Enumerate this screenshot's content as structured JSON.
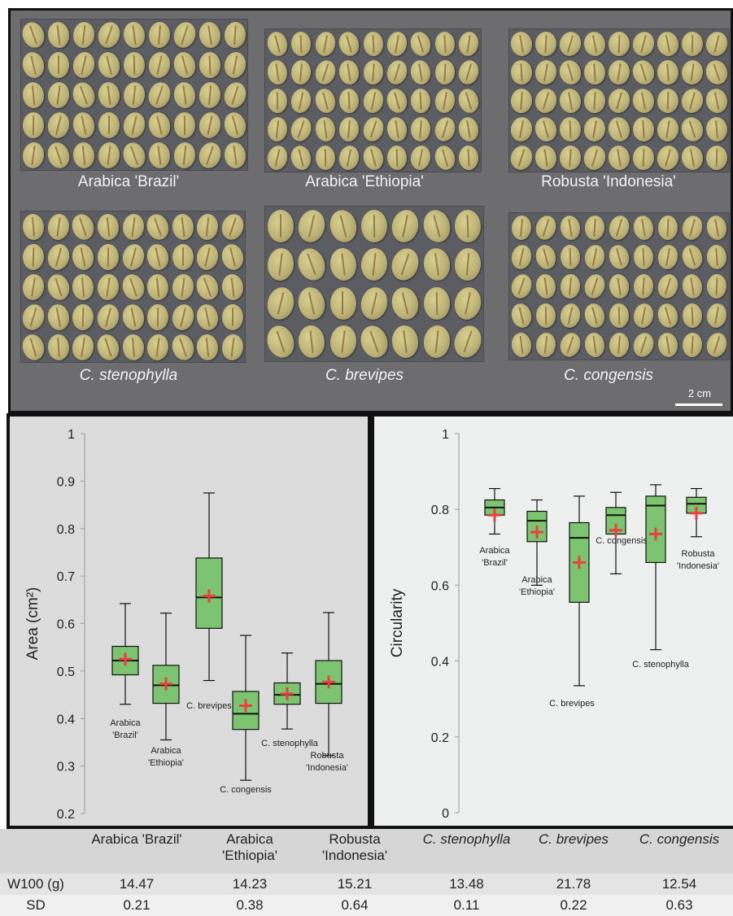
{
  "photos": {
    "labels": [
      "Arabica 'Brazil'",
      "Arabica 'Ethiopia'",
      "Robusta 'Indonesia'",
      "C. stenophylla",
      "C. brevipes",
      "C. congensis"
    ],
    "scale_label": "2 cm"
  },
  "colors": {
    "box_fill": "#7cc46f",
    "mean_marker": "#e84040",
    "photo_bg": "#6d6d70",
    "bean": "#c9c07f"
  },
  "chart_data": [
    {
      "type": "box",
      "ylabel": "Area (cm²)",
      "ylim": [
        0.2,
        1.0
      ],
      "yticks": [
        "0.2",
        "0.3",
        "0.4",
        "0.5",
        "0.6",
        "0.7",
        "0.8",
        "0.9",
        "1"
      ],
      "grid": false,
      "boxes": [
        {
          "label": [
            "Arabica",
            "'Brazil'"
          ],
          "min": 0.43,
          "q1": 0.492,
          "median": 0.522,
          "q3": 0.552,
          "max": 0.642,
          "mean": 0.525
        },
        {
          "label": [
            "Arabica",
            "'Ethiopia'"
          ],
          "min": 0.355,
          "q1": 0.432,
          "median": 0.47,
          "q3": 0.512,
          "max": 0.622,
          "mean": 0.473
        },
        {
          "label": [
            "C. brevipes"
          ],
          "min": 0.48,
          "q1": 0.59,
          "median": 0.655,
          "q3": 0.738,
          "max": 0.875,
          "mean": 0.658
        },
        {
          "label": [
            "C. congensis"
          ],
          "min": 0.27,
          "q1": 0.377,
          "median": 0.41,
          "q3": 0.457,
          "max": 0.575,
          "mean": 0.427
        },
        {
          "label": [
            "C. stenophylla"
          ],
          "min": 0.378,
          "q1": 0.43,
          "median": 0.45,
          "q3": 0.475,
          "max": 0.538,
          "mean": 0.452
        },
        {
          "label": [
            "Robusta",
            "'Indonesia'"
          ],
          "min": 0.322,
          "q1": 0.432,
          "median": 0.473,
          "q3": 0.522,
          "max": 0.623,
          "mean": 0.477
        }
      ]
    },
    {
      "type": "box",
      "ylabel": "Circularity",
      "ylim": [
        0,
        1.0
      ],
      "yticks": [
        "0",
        "0.2",
        "0.4",
        "0.6",
        "0.8",
        "1"
      ],
      "grid": false,
      "boxes": [
        {
          "label": [
            "Arabica",
            "'Brazil'"
          ],
          "min": 0.735,
          "q1": 0.785,
          "median": 0.805,
          "q3": 0.825,
          "max": 0.855,
          "mean": 0.785
        },
        {
          "label": [
            "Arabica",
            "'Ethiopia'"
          ],
          "min": 0.6,
          "q1": 0.715,
          "median": 0.77,
          "q3": 0.795,
          "max": 0.825,
          "mean": 0.74
        },
        {
          "label": [
            "C. brevipes"
          ],
          "min": 0.335,
          "q1": 0.555,
          "median": 0.725,
          "q3": 0.765,
          "max": 0.835,
          "mean": 0.66
        },
        {
          "label": [
            "C. congensis"
          ],
          "min": 0.63,
          "q1": 0.735,
          "median": 0.785,
          "q3": 0.805,
          "max": 0.845,
          "mean": 0.745
        },
        {
          "label": [
            "C. stenophylla"
          ],
          "min": 0.43,
          "q1": 0.66,
          "median": 0.81,
          "q3": 0.835,
          "max": 0.865,
          "mean": 0.735
        },
        {
          "label": [
            "Robusta",
            "'Indonesia'"
          ],
          "min": 0.728,
          "q1": 0.79,
          "median": 0.815,
          "q3": 0.832,
          "max": 0.855,
          "mean": 0.79
        }
      ]
    }
  ],
  "table": {
    "headers": [
      "",
      "Arabica 'Brazil'",
      "Arabica\n'Ethiopia'",
      "Robusta\n'Indonesia'",
      "C. stenophylla",
      "C. brevipes",
      "C. congensis"
    ],
    "rows": [
      [
        "W100 (g)",
        "14.47",
        "14.23",
        "15.21",
        "13.48",
        "21.78",
        "12.54"
      ],
      [
        "SD",
        "0.21",
        "0.38",
        "0.64",
        "0.11",
        "0.22",
        "0.63"
      ]
    ]
  }
}
